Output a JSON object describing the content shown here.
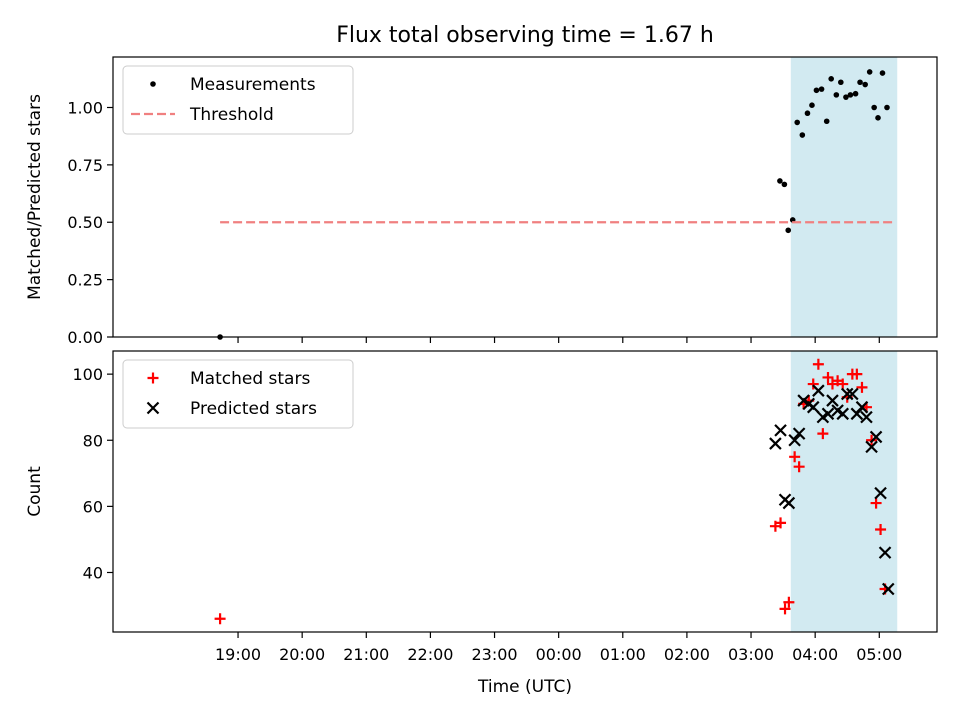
{
  "chart_data": {
    "title": "Flux total observing time = 1.67 h",
    "xlabel": "Time (UTC)",
    "x_unit": "hours since 18:00 UTC",
    "x_range": [
      -0.95,
      11.9
    ],
    "x_ticks": [
      {
        "v": 1,
        "label": "19:00"
      },
      {
        "v": 2,
        "label": "20:00"
      },
      {
        "v": 3,
        "label": "21:00"
      },
      {
        "v": 4,
        "label": "22:00"
      },
      {
        "v": 5,
        "label": "23:00"
      },
      {
        "v": 6,
        "label": "00:00"
      },
      {
        "v": 7,
        "label": "01:00"
      },
      {
        "v": 8,
        "label": "02:00"
      },
      {
        "v": 9,
        "label": "03:00"
      },
      {
        "v": 10,
        "label": "04:00"
      },
      {
        "v": 11,
        "label": "05:00"
      }
    ],
    "highlight_span": {
      "x0": 9.62,
      "x1": 11.28,
      "color": "#add8e6"
    },
    "panels": [
      {
        "type": "scatter",
        "ylabel": "Matched/Predicted stars",
        "ylim": [
          0.0,
          1.22
        ],
        "yticks": [
          {
            "v": 0.0,
            "label": "0.00"
          },
          {
            "v": 0.25,
            "label": "0.25"
          },
          {
            "v": 0.5,
            "label": "0.50"
          },
          {
            "v": 0.75,
            "label": "0.75"
          },
          {
            "v": 1.0,
            "label": "1.00"
          }
        ],
        "legend_position": "upper-left",
        "series": [
          {
            "name": "Measurements",
            "marker": "dot",
            "color": "#000000",
            "points": [
              [
                0.72,
                0.0
              ],
              [
                9.45,
                0.68
              ],
              [
                9.52,
                0.665
              ],
              [
                9.58,
                0.465
              ],
              [
                9.65,
                0.51
              ],
              [
                9.72,
                0.935
              ],
              [
                9.8,
                0.88
              ],
              [
                9.88,
                0.975
              ],
              [
                9.95,
                1.01
              ],
              [
                10.02,
                1.075
              ],
              [
                10.1,
                1.08
              ],
              [
                10.18,
                0.94
              ],
              [
                10.25,
                1.125
              ],
              [
                10.33,
                1.055
              ],
              [
                10.4,
                1.11
              ],
              [
                10.48,
                1.045
              ],
              [
                10.55,
                1.055
              ],
              [
                10.63,
                1.06
              ],
              [
                10.7,
                1.11
              ],
              [
                10.78,
                1.1
              ],
              [
                10.85,
                1.155
              ],
              [
                10.92,
                1.0
              ],
              [
                10.98,
                0.955
              ],
              [
                11.05,
                1.15
              ],
              [
                11.12,
                1.0
              ]
            ]
          },
          {
            "name": "Threshold",
            "marker": "dashed-line",
            "color": "#f08080",
            "line": {
              "x0": 0.72,
              "x1": 11.2,
              "y": 0.5
            }
          }
        ]
      },
      {
        "type": "scatter",
        "ylabel": "Count",
        "ylim": [
          22,
          107
        ],
        "yticks": [
          {
            "v": 40,
            "label": "40"
          },
          {
            "v": 60,
            "label": "60"
          },
          {
            "v": 80,
            "label": "80"
          },
          {
            "v": 100,
            "label": "100"
          }
        ],
        "legend_position": "upper-left",
        "series": [
          {
            "name": "Matched stars",
            "marker": "plus",
            "color": "#ff0000",
            "points": [
              [
                0.72,
                26
              ],
              [
                9.38,
                54
              ],
              [
                9.46,
                55
              ],
              [
                9.53,
                29
              ],
              [
                9.59,
                31
              ],
              [
                9.68,
                75
              ],
              [
                9.75,
                72
              ],
              [
                9.82,
                91
              ],
              [
                9.9,
                92
              ],
              [
                9.97,
                97
              ],
              [
                10.05,
                103
              ],
              [
                10.12,
                82
              ],
              [
                10.2,
                99
              ],
              [
                10.27,
                97
              ],
              [
                10.35,
                98
              ],
              [
                10.43,
                97
              ],
              [
                10.5,
                93
              ],
              [
                10.58,
                100
              ],
              [
                10.65,
                100
              ],
              [
                10.73,
                96
              ],
              [
                10.8,
                90
              ],
              [
                10.88,
                80
              ],
              [
                10.95,
                61
              ],
              [
                11.02,
                53
              ],
              [
                11.09,
                35
              ]
            ]
          },
          {
            "name": "Predicted stars",
            "marker": "x",
            "color": "#000000",
            "points": [
              [
                9.38,
                79
              ],
              [
                9.46,
                83
              ],
              [
                9.53,
                62
              ],
              [
                9.59,
                61
              ],
              [
                9.68,
                80
              ],
              [
                9.75,
                82
              ],
              [
                9.82,
                92
              ],
              [
                9.9,
                91
              ],
              [
                9.97,
                90
              ],
              [
                10.05,
                95
              ],
              [
                10.12,
                87
              ],
              [
                10.2,
                88
              ],
              [
                10.27,
                92
              ],
              [
                10.35,
                89
              ],
              [
                10.43,
                88
              ],
              [
                10.5,
                94
              ],
              [
                10.58,
                94
              ],
              [
                10.65,
                88
              ],
              [
                10.73,
                90
              ],
              [
                10.8,
                87
              ],
              [
                10.88,
                78
              ],
              [
                10.95,
                81
              ],
              [
                11.02,
                64
              ],
              [
                11.09,
                46
              ],
              [
                11.14,
                35
              ]
            ]
          }
        ]
      }
    ]
  }
}
